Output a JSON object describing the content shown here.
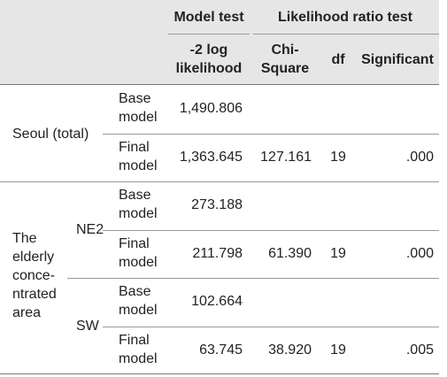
{
  "header": {
    "model_test": "Model test",
    "likelihood_ratio_test": "Likelihood ratio test",
    "neg2loglik_line1": "-2 log",
    "neg2loglik_line2": "likelihood",
    "chi_line1": "Chi-",
    "chi_line2": "Square",
    "df": "df",
    "significant": "Significant"
  },
  "seoul": {
    "label": "Seoul (total)",
    "base": {
      "label1": "Base",
      "label2": "model",
      "loglik": "1,490.806"
    },
    "final": {
      "label1": "Final",
      "label2": "model",
      "loglik": "1,363.645",
      "chi": "127.161",
      "df": "19",
      "sig": ".000"
    }
  },
  "elderly": {
    "label_lines": [
      "The",
      "elderly",
      "conce-",
      "ntrated",
      "area"
    ],
    "ne2": {
      "label": "NE2",
      "base": {
        "label1": "Base",
        "label2": "model",
        "loglik": "273.188"
      },
      "final": {
        "label1": "Final",
        "label2": "model",
        "loglik": "211.798",
        "chi": "61.390",
        "df": "19",
        "sig": ".000"
      }
    },
    "sw": {
      "label": "SW",
      "base": {
        "label1": "Base",
        "label2": "model",
        "loglik": "102.664"
      },
      "final": {
        "label1": "Final",
        "label2": "model",
        "loglik": "63.745",
        "chi": "38.920",
        "df": "19",
        "sig": ".005"
      }
    }
  }
}
